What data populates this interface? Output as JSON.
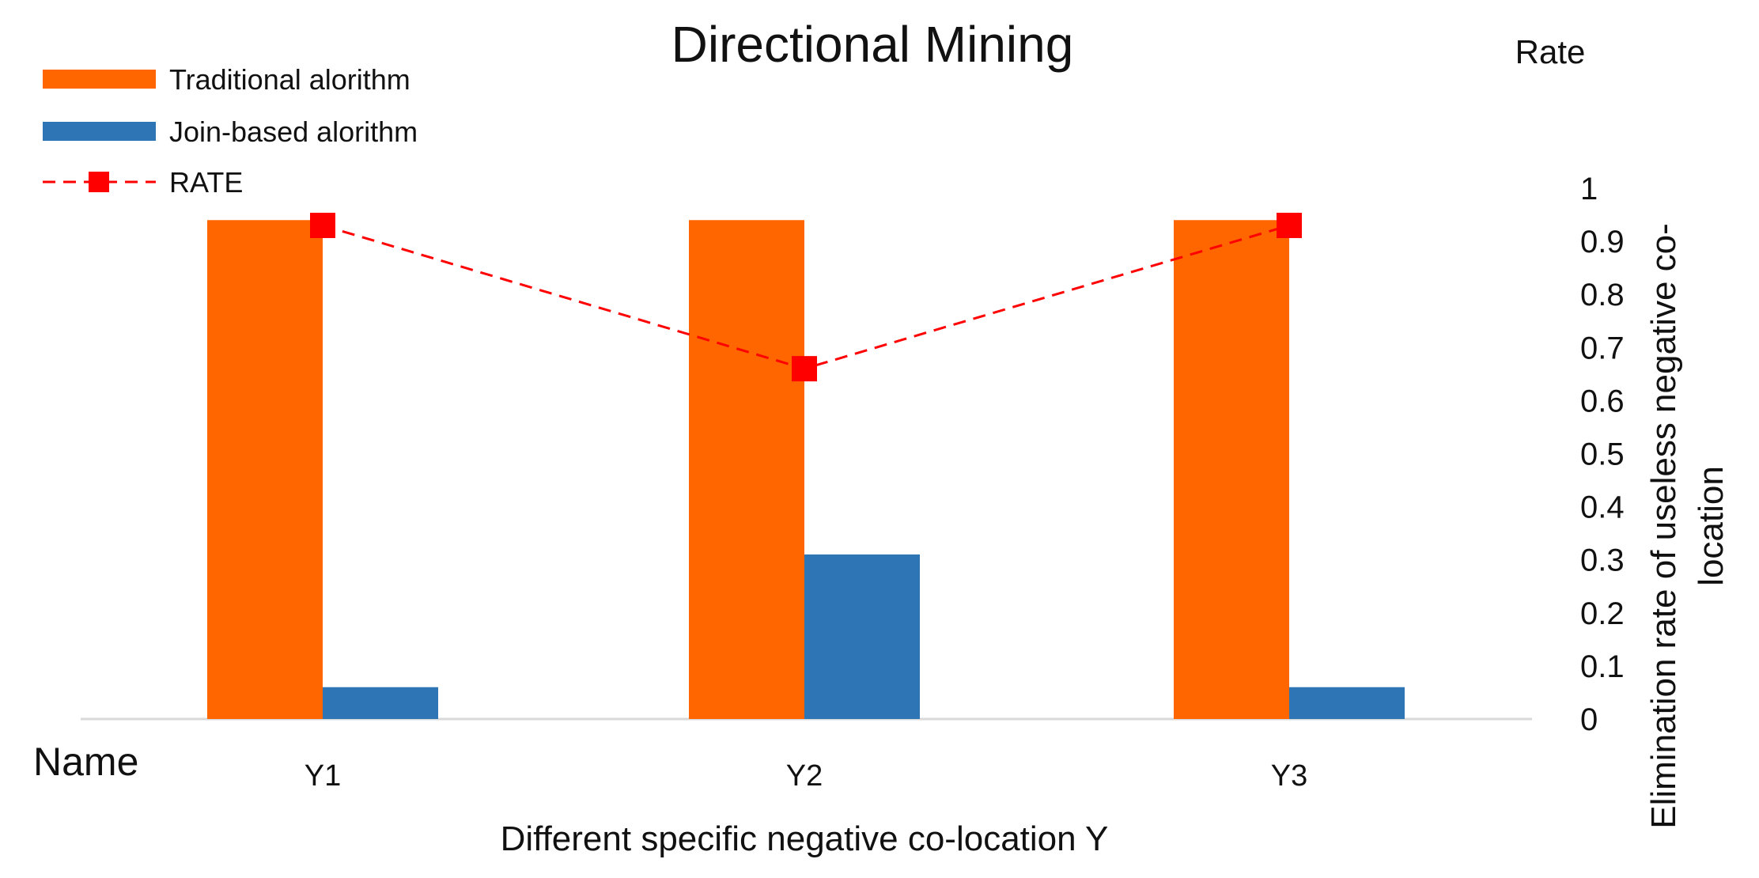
{
  "chart_data": {
    "type": "bar",
    "title": "Directional Mining",
    "categories": [
      "Y1",
      "Y2",
      "Y3"
    ],
    "category_axis_label": "Name",
    "xlabel": "Different specific negative co-location Y",
    "series": [
      {
        "name": "Traditional alorithm",
        "kind": "bar",
        "color": "#FF6600",
        "values": [
          0.94,
          0.94,
          0.94
        ]
      },
      {
        "name": "Join-based alorithm",
        "kind": "bar",
        "color": "#2E75B6",
        "values": [
          0.06,
          0.31,
          0.06
        ]
      },
      {
        "name": "RATE",
        "kind": "line",
        "color": "#FF0000",
        "line_style": "dashed",
        "marker": "square",
        "values": [
          0.93,
          0.66,
          0.93
        ]
      }
    ],
    "y2_axis": {
      "title": "Rate",
      "label": "Elimination rate of useless negative co-location",
      "label_lines": [
        "Elimination rate of useless negative co-",
        "location"
      ],
      "ylim": [
        0,
        1
      ],
      "ticks": [
        "0",
        "0.1",
        "0.2",
        "0.3",
        "0.4",
        "0.5",
        "0.6",
        "0.7",
        "0.8",
        "0.9",
        "1"
      ],
      "position": "right"
    },
    "legend_position": "top-left",
    "grid": false
  }
}
